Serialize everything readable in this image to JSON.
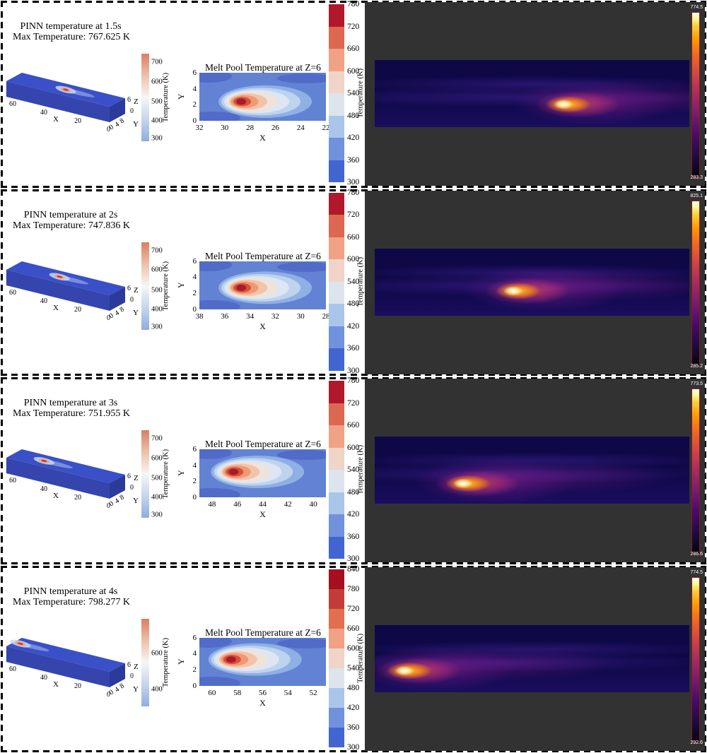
{
  "figure_title": "PINN predicted temperature fields vs experimental IR melt-pool images at four times",
  "accent_colors": {
    "panel_dark": "#333233",
    "contour_background_blue": "#6282d4",
    "melt_core_red": "#a81b28",
    "coolwarm_top": "#d87f63",
    "coolwarm_bottom": "#90acdf",
    "ir_hot_white": "#ffffff",
    "ir_cold_black": "#05040e"
  },
  "rows": [
    {
      "pinn": {
        "title": "PINN temperature at 1.5s",
        "subtitle": "Max Temperature: 767.625 K",
        "x_label": "X",
        "y_label": "Y",
        "z_label": "Z",
        "x_ticks": [
          "60",
          "40",
          "20",
          "0"
        ],
        "y_ticks": [
          "0",
          "4",
          "8"
        ],
        "z_ticks": [
          "6",
          "0"
        ],
        "colorbar": {
          "label": "Temperature (K)",
          "ticks": [
            "700",
            "600",
            "500",
            "400",
            "300"
          ]
        }
      },
      "melt_pool": {
        "title": "Melt Pool Temperature at Z=6",
        "x_label": "X",
        "y_label": "Y",
        "x_ticks": [
          "32",
          "30",
          "28",
          "26",
          "24",
          "22"
        ],
        "y_ticks": [
          "6",
          "4",
          "2",
          "0"
        ],
        "colorbar": {
          "label": "Temperature (K)",
          "ticks": [
            "780",
            "720",
            "660",
            "600",
            "540",
            "480",
            "420",
            "360",
            "300"
          ]
        }
      },
      "thermal": {
        "cbar_max": "774.5",
        "cbar_min": "283.3"
      }
    },
    {
      "pinn": {
        "title": "PINN temperature at 2s",
        "subtitle": "Max Temperature: 747.836 K",
        "x_label": "X",
        "y_label": "Y",
        "z_label": "Z",
        "x_ticks": [
          "60",
          "40",
          "20",
          "0"
        ],
        "y_ticks": [
          "0",
          "4",
          "8"
        ],
        "z_ticks": [
          "6",
          "0"
        ],
        "colorbar": {
          "label": "Temperature (K)",
          "ticks": [
            "700",
            "600",
            "500",
            "400",
            "300"
          ]
        }
      },
      "melt_pool": {
        "title": "Melt Pool Temperature at Z=6",
        "x_label": "X",
        "y_label": "Y",
        "x_ticks": [
          "38",
          "36",
          "34",
          "32",
          "30",
          "28"
        ],
        "y_ticks": [
          "6",
          "4",
          "2",
          "0"
        ],
        "colorbar": {
          "label": "Temperature (K)",
          "ticks": [
            "780",
            "720",
            "660",
            "600",
            "540",
            "480",
            "420",
            "360",
            "300"
          ]
        }
      },
      "thermal": {
        "cbar_max": "825.1",
        "cbar_min": "285.2"
      }
    },
    {
      "pinn": {
        "title": "PINN temperature at 3s",
        "subtitle": "Max Temperature: 751.955 K",
        "x_label": "X",
        "y_label": "Y",
        "z_label": "Z",
        "x_ticks": [
          "60",
          "40",
          "20",
          "0"
        ],
        "y_ticks": [
          "0",
          "4",
          "8"
        ],
        "z_ticks": [
          "6",
          "0"
        ],
        "colorbar": {
          "label": "Temperature (K)",
          "ticks": [
            "700",
            "600",
            "500",
            "400",
            "300"
          ]
        }
      },
      "melt_pool": {
        "title": "Melt Pool Temperature at Z=6",
        "x_label": "X",
        "y_label": "Y",
        "x_ticks": [
          "48",
          "46",
          "44",
          "42",
          "40"
        ],
        "y_ticks": [
          "6",
          "4",
          "2",
          "0"
        ],
        "colorbar": {
          "label": "Temperature (K)",
          "ticks": [
            "780",
            "720",
            "660",
            "600",
            "540",
            "480",
            "420",
            "360",
            "300"
          ]
        }
      },
      "thermal": {
        "cbar_max": "773.5",
        "cbar_min": "286.6"
      }
    },
    {
      "pinn": {
        "title": "PINN temperature at 4s",
        "subtitle": "Max Temperature: 798.277 K",
        "x_label": "X",
        "y_label": "Y",
        "z_label": "Z",
        "x_ticks": [
          "60",
          "40",
          "20",
          "0"
        ],
        "y_ticks": [
          "0",
          "4",
          "8"
        ],
        "z_ticks": [
          "6",
          "0"
        ],
        "colorbar": {
          "label": "Temperature (K)",
          "ticks": [
            "600",
            "400"
          ]
        }
      },
      "melt_pool": {
        "title": "Melt Pool Temperature at Z=6",
        "x_label": "X",
        "y_label": "Y",
        "x_ticks": [
          "60",
          "58",
          "56",
          "54",
          "52"
        ],
        "y_ticks": [
          "6",
          "4",
          "2",
          "0"
        ],
        "colorbar": {
          "label": "Temperature (K)",
          "ticks": [
            "840",
            "780",
            "720",
            "660",
            "600",
            "540",
            "480",
            "420",
            "360",
            "300"
          ]
        }
      },
      "thermal": {
        "cbar_max": "774.5",
        "cbar_min": "292.6"
      }
    }
  ],
  "chart_data": [
    {
      "type": "heatmap",
      "panel": "pinn-3d-surface",
      "times_s": [
        1.5,
        2,
        3,
        4
      ],
      "max_temperature_K": [
        767.625,
        747.836,
        751.955,
        798.277
      ],
      "x_range": [
        0,
        60
      ],
      "y_range": [
        0,
        8
      ],
      "z_range": [
        0,
        6
      ],
      "colorbar_label": "Temperature (K)",
      "colorbar_ticks_K": [
        [
          300,
          400,
          500,
          600,
          700
        ],
        [
          300,
          400,
          500,
          600,
          700
        ],
        [
          300,
          400,
          500,
          600,
          700
        ],
        [
          400,
          600
        ]
      ]
    },
    {
      "type": "heatmap",
      "panel": "melt-pool-contour",
      "title": "Melt Pool Temperature at Z=6",
      "x_windows": [
        [
          32,
          22
        ],
        [
          38,
          28
        ],
        [
          49,
          39
        ],
        [
          61,
          51
        ]
      ],
      "y_range": [
        0,
        6
      ],
      "melt_pool_center_x": [
        28.5,
        34.5,
        46.5,
        58.5
      ],
      "colorbar_label": "Temperature (K)",
      "colorbar_range_K": [
        [
          300,
          780
        ],
        [
          300,
          780
        ],
        [
          300,
          780
        ],
        [
          300,
          840
        ]
      ],
      "colorbar_step_K": 60
    },
    {
      "type": "heatmap",
      "panel": "experimental-ir-image",
      "colorbar_max_K": [
        774.5,
        825.1,
        773.5,
        774.5
      ],
      "colorbar_min_K": [
        283.3,
        285.2,
        286.6,
        292.6
      ]
    }
  ]
}
